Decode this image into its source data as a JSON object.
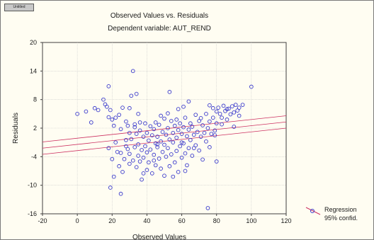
{
  "window": {
    "tab_label": "Untitled"
  },
  "chart_data": {
    "type": "scatter",
    "title": "Observed Values vs. Residuals",
    "subtitle": "Dependent variable: AUT_REND",
    "xlabel": "Observed Values",
    "ylabel": "Residuals",
    "xlim": [
      -20,
      120
    ],
    "ylim": [
      -16,
      20
    ],
    "xticks": [
      -20,
      0,
      20,
      40,
      60,
      80,
      100,
      120
    ],
    "yticks": [
      -16,
      -10,
      -4,
      2,
      8,
      14,
      20
    ],
    "grid": true,
    "legend_position": "bottom-right",
    "legend": [
      {
        "label": "Regression",
        "marker": "circle",
        "color": "#3a3acc"
      },
      {
        "label": "95% confid.",
        "marker": "line",
        "color": "#cc3060"
      }
    ],
    "regression_line": {
      "x": [
        -20,
        120
      ],
      "y": [
        -2.2,
        3.3
      ]
    },
    "confidence_upper": {
      "x": [
        -20,
        120
      ],
      "y": [
        -0.9,
        4.6
      ]
    },
    "confidence_lower": {
      "x": [
        -20,
        120
      ],
      "y": [
        -3.5,
        2.0
      ]
    },
    "colors": {
      "points": "#3a3acc",
      "regression": "#cc3060",
      "grid": "#c8c8c8",
      "background": "#fffdf2"
    },
    "series": [
      {
        "name": "Regression",
        "points": [
          [
            0,
            5.0
          ],
          [
            5,
            5.5
          ],
          [
            8,
            3.2
          ],
          [
            10,
            6.2
          ],
          [
            12,
            5.8
          ],
          [
            15,
            8.0
          ],
          [
            16,
            7.0
          ],
          [
            17,
            6.5
          ],
          [
            18,
            4.3
          ],
          [
            18,
            10.8
          ],
          [
            19,
            5.8
          ],
          [
            20,
            3.8
          ],
          [
            21,
            2.5
          ],
          [
            22,
            4.2
          ],
          [
            24,
            4.8
          ],
          [
            25,
            1.8
          ],
          [
            26,
            6.3
          ],
          [
            28,
            3.4
          ],
          [
            28,
            -1.8
          ],
          [
            29,
            2.5
          ],
          [
            30,
            6.2
          ],
          [
            30,
            -5.5
          ],
          [
            30,
            1.0
          ],
          [
            31,
            8.8
          ],
          [
            32,
            14.0
          ],
          [
            33,
            2.8
          ],
          [
            34,
            9.2
          ],
          [
            35,
            5.0
          ],
          [
            36,
            3.2
          ],
          [
            18,
            -2.2
          ],
          [
            20,
            -4.5
          ],
          [
            21,
            -8.2
          ],
          [
            19,
            -10.5
          ],
          [
            22,
            -1.0
          ],
          [
            23,
            -3.0
          ],
          [
            24,
            -6.0
          ],
          [
            25,
            -3.2
          ],
          [
            25,
            -11.8
          ],
          [
            26,
            -7.2
          ],
          [
            27,
            -4.5
          ],
          [
            28,
            -0.5
          ],
          [
            29,
            -2.4
          ],
          [
            30,
            -3.4
          ],
          [
            31,
            -0.3
          ],
          [
            32,
            -4.8
          ],
          [
            33,
            -2.0
          ],
          [
            33,
            2.2
          ],
          [
            34,
            -6.2
          ],
          [
            34,
            0.8
          ],
          [
            35,
            -3.8
          ],
          [
            35,
            -1.4
          ],
          [
            36,
            -5.0
          ],
          [
            36,
            1.5
          ],
          [
            37,
            -2.6
          ],
          [
            37,
            -8.8
          ],
          [
            38,
            0.2
          ],
          [
            38,
            -4.2
          ],
          [
            39,
            -1.8
          ],
          [
            39,
            3.0
          ],
          [
            40,
            -3.1
          ],
          [
            40,
            -6.8
          ],
          [
            40,
            1.0
          ],
          [
            41,
            -0.6
          ],
          [
            41,
            -5.2
          ],
          [
            42,
            2.4
          ],
          [
            42,
            -2.5
          ],
          [
            43,
            -7.5
          ],
          [
            43,
            0.5
          ],
          [
            44,
            -3.6
          ],
          [
            44,
            1.8
          ],
          [
            45,
            -1.2
          ],
          [
            45,
            -5.8
          ],
          [
            45,
            3.2
          ],
          [
            46,
            -2.0
          ],
          [
            46,
            0.2
          ],
          [
            47,
            -4.4
          ],
          [
            47,
            2.7
          ],
          [
            48,
            -0.8
          ],
          [
            48,
            -6.5
          ],
          [
            49,
            1.2
          ],
          [
            49,
            -3.0
          ],
          [
            50,
            -1.5
          ],
          [
            50,
            4.0
          ],
          [
            50,
            -8.0
          ],
          [
            51,
            0.6
          ],
          [
            51,
            -4.0
          ],
          [
            52,
            2.0
          ],
          [
            52,
            -2.2
          ],
          [
            53,
            -0.4
          ],
          [
            53,
            -6.0
          ],
          [
            54,
            3.5
          ],
          [
            54,
            -3.5
          ],
          [
            55,
            1.0
          ],
          [
            55,
            -1.0
          ],
          [
            56,
            -5.2
          ],
          [
            56,
            2.5
          ],
          [
            57,
            0.0
          ],
          [
            57,
            -2.8
          ],
          [
            58,
            1.6
          ],
          [
            58,
            -7.2
          ],
          [
            59,
            -1.8
          ],
          [
            59,
            3.0
          ],
          [
            60,
            0.8
          ],
          [
            60,
            -4.2
          ],
          [
            61,
            2.2
          ],
          [
            61,
            -1.2
          ],
          [
            62,
            -3.3
          ],
          [
            62,
            4.2
          ],
          [
            63,
            0.3
          ],
          [
            63,
            -5.8
          ],
          [
            64,
            1.7
          ],
          [
            64,
            -2.2
          ],
          [
            65,
            3.0
          ],
          [
            65,
            -0.5
          ],
          [
            66,
            -3.8
          ],
          [
            66,
            2.3
          ],
          [
            67,
            0.6
          ],
          [
            68,
            4.8
          ],
          [
            68,
            -1.6
          ],
          [
            69,
            1.2
          ],
          [
            70,
            -2.7
          ],
          [
            70,
            3.5
          ],
          [
            71,
            0.2
          ],
          [
            72,
            2.6
          ],
          [
            72,
            -4.6
          ],
          [
            73,
            1.0
          ],
          [
            74,
            5.0
          ],
          [
            74,
            -0.8
          ],
          [
            75,
            2.0
          ],
          [
            76,
            -2.0
          ],
          [
            76,
            3.4
          ],
          [
            77,
            0.8
          ],
          [
            78,
            4.2
          ],
          [
            79,
            1.5
          ],
          [
            80,
            5.5
          ],
          [
            80,
            -5.0
          ],
          [
            53,
            9.6
          ],
          [
            61,
            6.5
          ],
          [
            64,
            7.6
          ],
          [
            58,
            6.0
          ],
          [
            76,
            6.8
          ],
          [
            78,
            6.2
          ],
          [
            80,
            3.0
          ],
          [
            81,
            6.3
          ],
          [
            82,
            5.0
          ],
          [
            83,
            4.2
          ],
          [
            84,
            6.7
          ],
          [
            85,
            5.6
          ],
          [
            86,
            3.8
          ],
          [
            87,
            6.1
          ],
          [
            88,
            4.9
          ],
          [
            89,
            6.6
          ],
          [
            90,
            5.3
          ],
          [
            90,
            2.3
          ],
          [
            91,
            6.9
          ],
          [
            92,
            5.7
          ],
          [
            93,
            6.3
          ],
          [
            93,
            4.6
          ],
          [
            95,
            6.9
          ],
          [
            83,
            2.8
          ],
          [
            86,
            6.0
          ],
          [
            100,
            10.7
          ],
          [
            75,
            -14.8
          ],
          [
            46,
            -1.4
          ],
          [
            57,
            3.8
          ],
          [
            48,
            4.6
          ],
          [
            55,
            -8.2
          ],
          [
            62,
            -7.0
          ],
          [
            67,
            -2.2
          ],
          [
            71,
            4.1
          ],
          [
            79,
            0.5
          ],
          [
            44,
            -4.8
          ],
          [
            52,
            5.1
          ],
          [
            60,
            -1.0
          ],
          [
            38,
            -7.5
          ]
        ]
      }
    ]
  }
}
